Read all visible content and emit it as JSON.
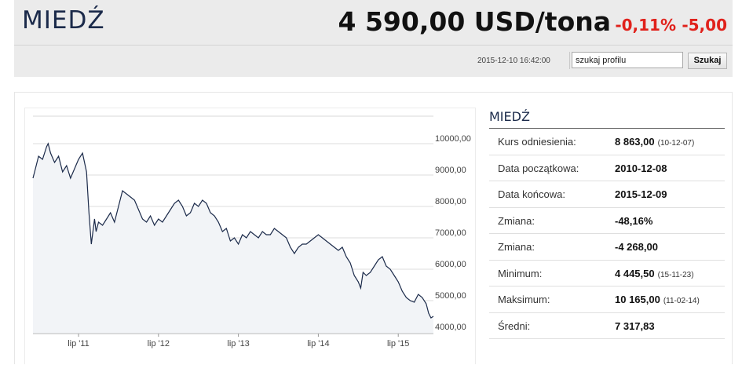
{
  "header": {
    "title": "MIEDŹ",
    "price": "4 590,00 USD/tona",
    "change_pct": "-0,11%",
    "change_abs": "-5,00",
    "timestamp": "2015-12-10 16:42:00",
    "search_placeholder": "szukaj profilu",
    "search_button": "Szukaj",
    "change_color": "#e0211b"
  },
  "info": {
    "title": "MIEDŹ",
    "rows": [
      {
        "label": "Kurs odniesienia:",
        "value": "8 863,00",
        "date": "(10-12-07)"
      },
      {
        "label": "Data początkowa:",
        "value": "2010-12-08",
        "date": ""
      },
      {
        "label": "Data końcowa:",
        "value": "2015-12-09",
        "date": ""
      },
      {
        "label": "Zmiana:",
        "value": "-48,16%",
        "date": ""
      },
      {
        "label": "Zmiana:",
        "value": "-4 268,00",
        "date": ""
      },
      {
        "label": "Minimum:",
        "value": "4 445,50",
        "date": "(15-11-23)"
      },
      {
        "label": "Maksimum:",
        "value": "10 165,00",
        "date": "(11-02-14)"
      },
      {
        "label": "Średni:",
        "value": "7 317,83",
        "date": ""
      }
    ]
  },
  "chart_data": {
    "type": "area",
    "ylim": [
      4000,
      10000
    ],
    "y_ticks": [
      "10000,00",
      "9000,00",
      "8000,00",
      "7000,00",
      "6000,00",
      "5000,00",
      "4000,00"
    ],
    "y_tick_values": [
      10000,
      9000,
      8000,
      7000,
      6000,
      5000,
      4000
    ],
    "x_ticks": [
      "lip '11",
      "lip '12",
      "lip '13",
      "lip '14",
      "lip '15"
    ],
    "x_tick_values": [
      2011.5,
      2012.5,
      2013.5,
      2014.5,
      2015.5
    ],
    "xlim": [
      2010.93,
      2015.94
    ],
    "grid": true,
    "line_color": "#1b2a4a",
    "fill_color": "#f2f4f7",
    "series": [
      {
        "x": [
          2010.93,
          2010.97,
          2011.0,
          2011.05,
          2011.1,
          2011.12,
          2011.15,
          2011.2,
          2011.25,
          2011.3,
          2011.35,
          2011.4,
          2011.45,
          2011.5,
          2011.55,
          2011.6,
          2011.63,
          2011.66,
          2011.7,
          2011.72,
          2011.75,
          2011.8,
          2011.85,
          2011.9,
          2011.95,
          2012.0,
          2012.05,
          2012.1,
          2012.15,
          2012.2,
          2012.25,
          2012.3,
          2012.35,
          2012.4,
          2012.45,
          2012.5,
          2012.55,
          2012.6,
          2012.65,
          2012.7,
          2012.75,
          2012.8,
          2012.85,
          2012.9,
          2012.95,
          2013.0,
          2013.05,
          2013.1,
          2013.15,
          2013.2,
          2013.25,
          2013.3,
          2013.35,
          2013.4,
          2013.45,
          2013.5,
          2013.55,
          2013.6,
          2013.65,
          2013.7,
          2013.75,
          2013.8,
          2013.85,
          2013.9,
          2013.95,
          2014.0,
          2014.05,
          2014.1,
          2014.15,
          2014.2,
          2014.25,
          2014.3,
          2014.35,
          2014.4,
          2014.45,
          2014.5,
          2014.55,
          2014.6,
          2014.65,
          2014.7,
          2014.75,
          2014.8,
          2014.85,
          2014.9,
          2014.95,
          2015.0,
          2015.03,
          2015.06,
          2015.1,
          2015.15,
          2015.2,
          2015.25,
          2015.3,
          2015.35,
          2015.4,
          2015.45,
          2015.5,
          2015.55,
          2015.6,
          2015.65,
          2015.7,
          2015.75,
          2015.8,
          2015.85,
          2015.88,
          2015.91,
          2015.94
        ],
        "values": [
          8900,
          9300,
          9600,
          9500,
          9900,
          10000,
          9700,
          9400,
          9600,
          9100,
          9300,
          8900,
          9200,
          9500,
          9700,
          9100,
          7800,
          6800,
          7600,
          7200,
          7500,
          7400,
          7600,
          7800,
          7500,
          8000,
          8500,
          8400,
          8300,
          8200,
          7900,
          7600,
          7500,
          7700,
          7400,
          7600,
          7500,
          7700,
          7900,
          8100,
          8200,
          8000,
          7700,
          7800,
          8100,
          8000,
          8200,
          8100,
          7800,
          7700,
          7500,
          7200,
          7300,
          6900,
          7000,
          6800,
          7100,
          7000,
          7200,
          7100,
          7000,
          7200,
          7100,
          7100,
          7300,
          7200,
          7100,
          7000,
          6700,
          6500,
          6700,
          6800,
          6800,
          6900,
          7000,
          7100,
          7000,
          6900,
          6800,
          6700,
          6600,
          6700,
          6400,
          6200,
          5800,
          5600,
          5400,
          5900,
          5800,
          5900,
          6100,
          6300,
          6400,
          6100,
          6000,
          5800,
          5600,
          5300,
          5100,
          5000,
          4950,
          5200,
          5100,
          4900,
          4600,
          4450,
          4500
        ]
      }
    ]
  }
}
